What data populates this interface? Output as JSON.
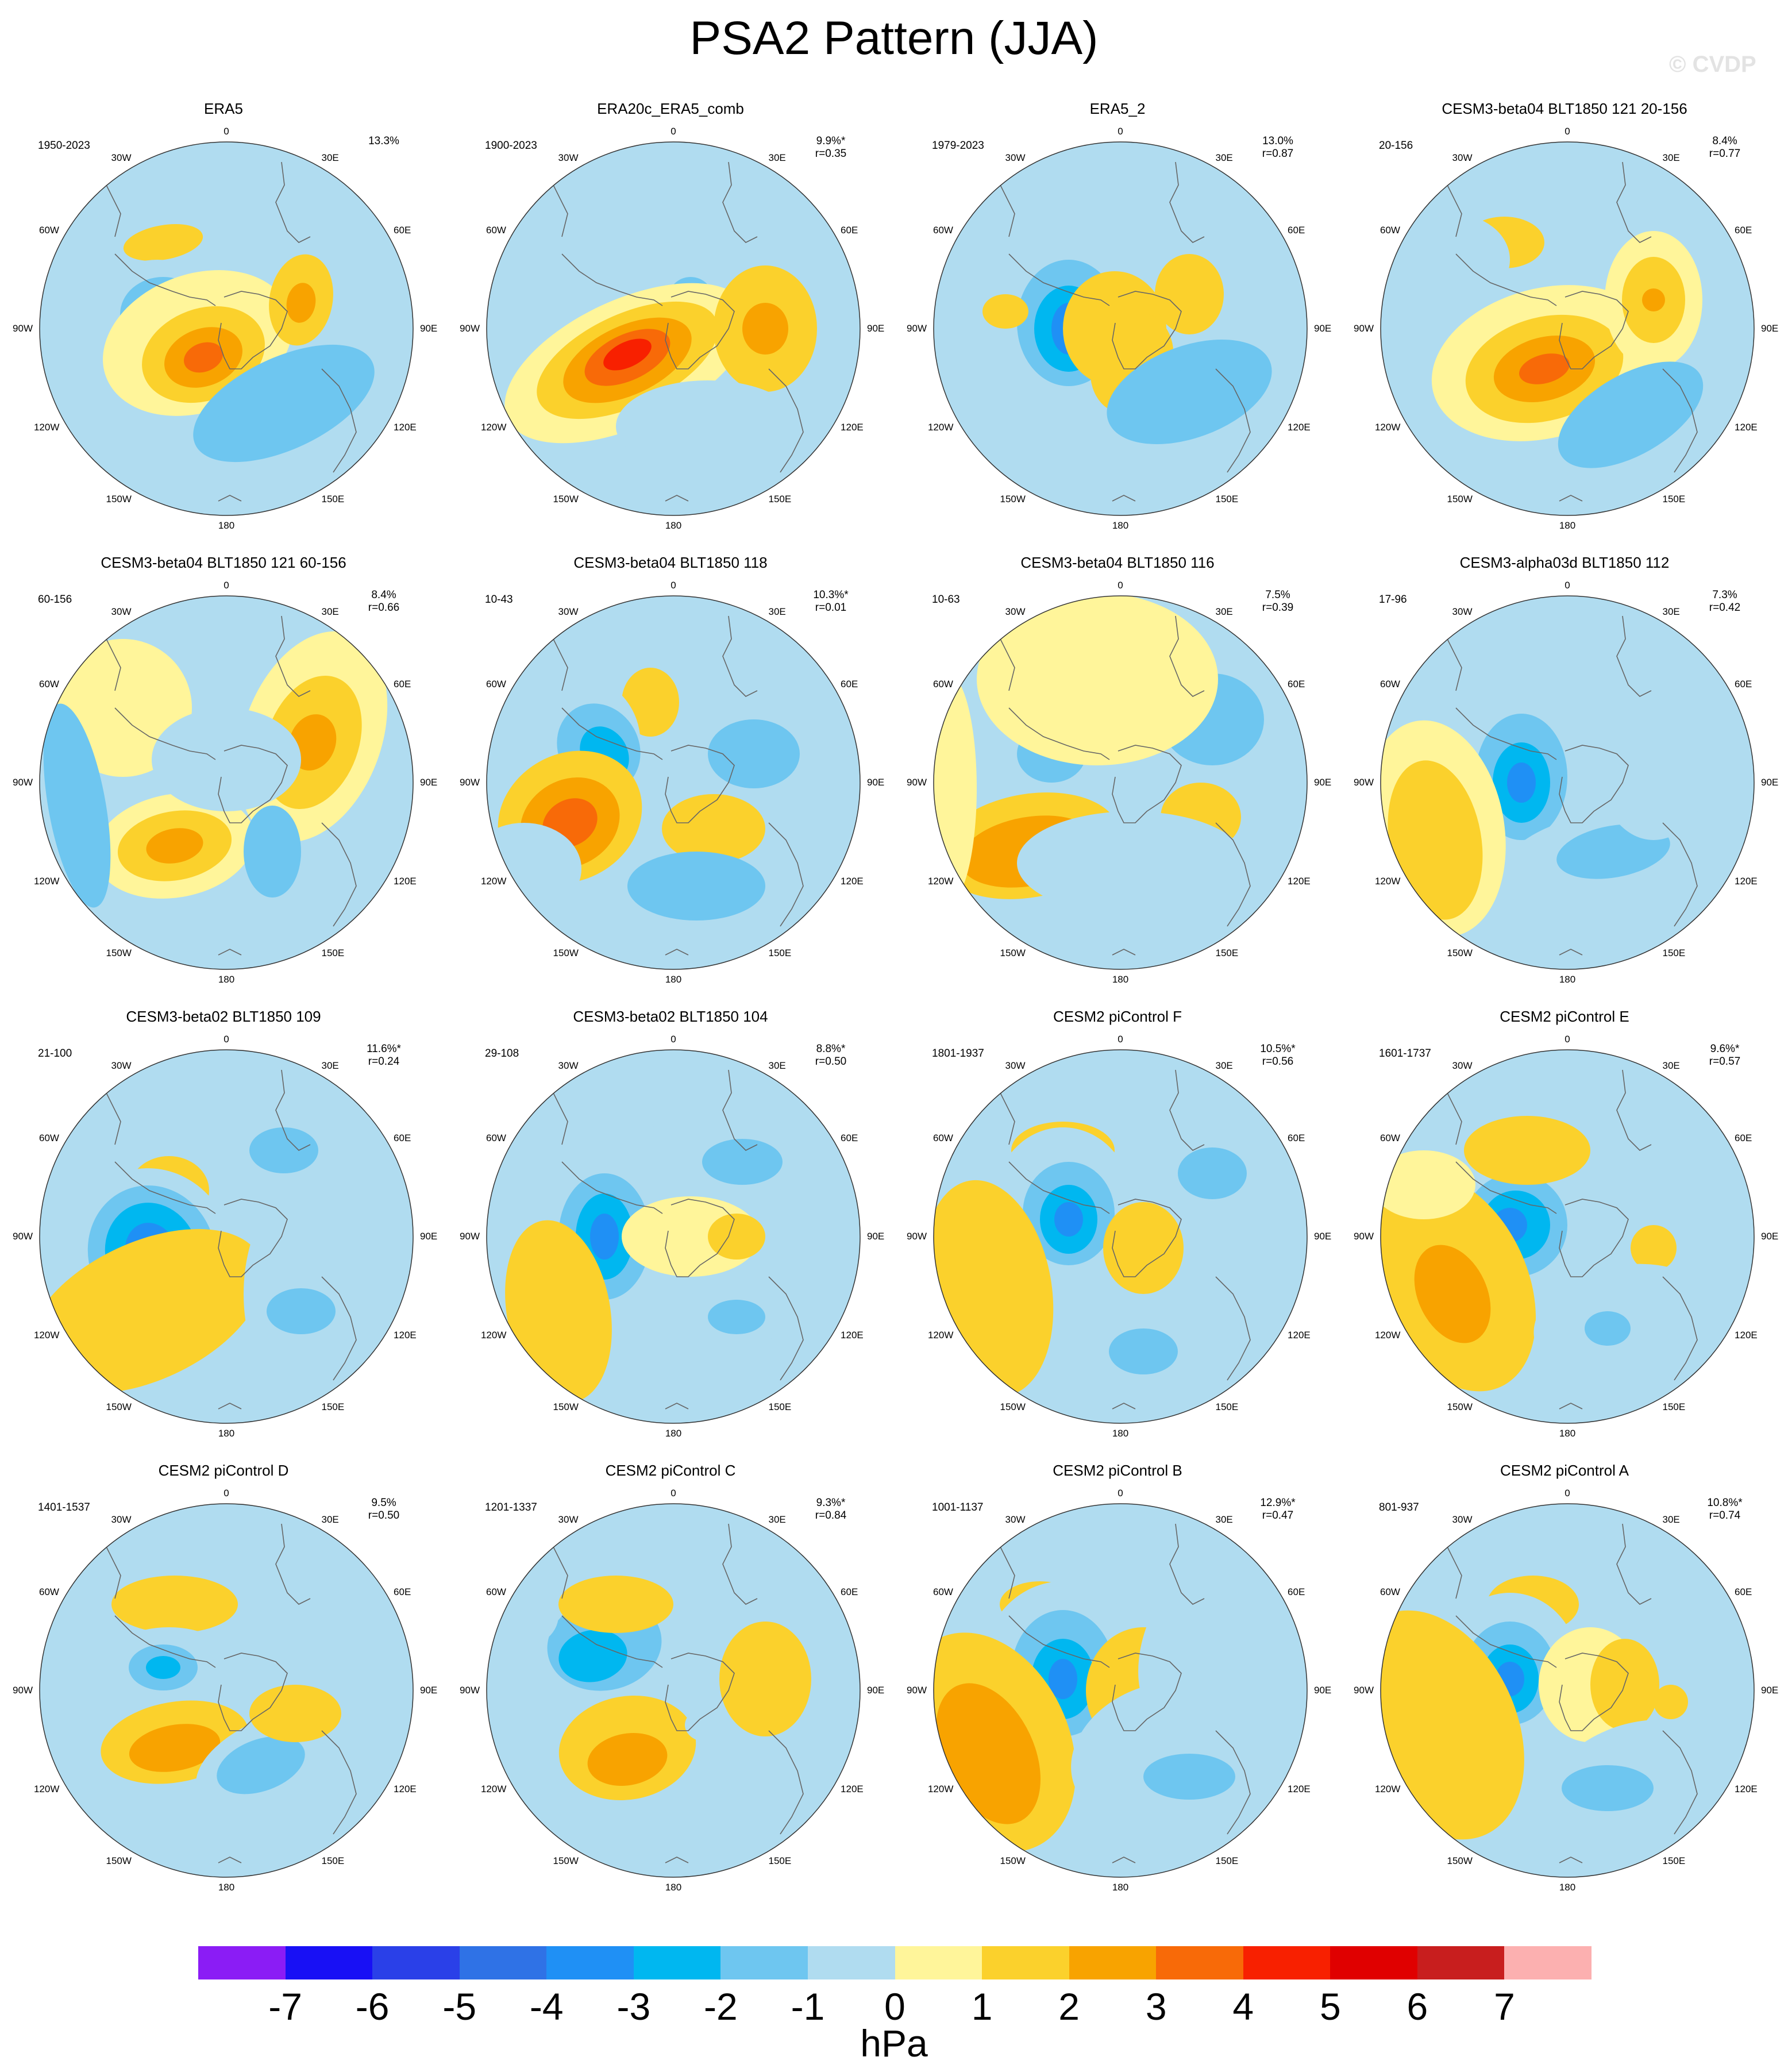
{
  "title": "PSA2 Pattern (JJA)",
  "watermark": "© CVDP",
  "colorbar": {
    "unit": "hPa",
    "ticks": [
      "-7",
      "-6",
      "-5",
      "-4",
      "-3",
      "-2",
      "-1",
      "0",
      "1",
      "2",
      "3",
      "4",
      "5",
      "6",
      "7"
    ],
    "colors": [
      "#8b1cf5",
      "#1810f5",
      "#2a40e8",
      "#2f72e6",
      "#1f90f5",
      "#00b7f0",
      "#6ec6f0",
      "#b0dcf0",
      "#fff59a",
      "#fbd12c",
      "#f8a300",
      "#f86a08",
      "#f82000",
      "#e00000",
      "#c81e1e",
      "#fcb0b0"
    ]
  },
  "longitude_labels": [
    "0",
    "30E",
    "60E",
    "90E",
    "120E",
    "150E",
    "180",
    "150W",
    "120W",
    "90W",
    "60W",
    "30W"
  ],
  "panels": [
    {
      "title": "ERA5",
      "years": "1950-2023",
      "pct": "13.3%",
      "r": ""
    },
    {
      "title": "ERA20c_ERA5_comb",
      "years": "1900-2023",
      "pct": "9.9%*",
      "r": "r=0.35"
    },
    {
      "title": "ERA5_2",
      "years": "1979-2023",
      "pct": "13.0%",
      "r": "r=0.87"
    },
    {
      "title": "CESM3-beta04 BLT1850 121 20-156",
      "years": "20-156",
      "pct": "8.4%",
      "r": "r=0.77"
    },
    {
      "title": "CESM3-beta04 BLT1850 121 60-156",
      "years": "60-156",
      "pct": "8.4%",
      "r": "r=0.66"
    },
    {
      "title": "CESM3-beta04 BLT1850 118",
      "years": "10-43",
      "pct": "10.3%*",
      "r": "r=0.01"
    },
    {
      "title": "CESM3-beta04 BLT1850 116",
      "years": "10-63",
      "pct": "7.5%",
      "r": "r=0.39"
    },
    {
      "title": "CESM3-alpha03d BLT1850 112",
      "years": "17-96",
      "pct": "7.3%",
      "r": "r=0.42"
    },
    {
      "title": "CESM3-beta02 BLT1850 109",
      "years": "21-100",
      "pct": "11.6%*",
      "r": "r=0.24"
    },
    {
      "title": "CESM3-beta02 BLT1850 104",
      "years": "29-108",
      "pct": "8.8%*",
      "r": "r=0.50"
    },
    {
      "title": "CESM2 piControl F",
      "years": "1801-1937",
      "pct": "10.5%*",
      "r": "r=0.56"
    },
    {
      "title": "CESM2 piControl E",
      "years": "1601-1737",
      "pct": "9.6%*",
      "r": "r=0.57"
    },
    {
      "title": "CESM2 piControl D",
      "years": "1401-1537",
      "pct": "9.5%",
      "r": "r=0.50"
    },
    {
      "title": "CESM2 piControl C",
      "years": "1201-1337",
      "pct": "9.3%*",
      "r": "r=0.84"
    },
    {
      "title": "CESM2 piControl B",
      "years": "1001-1137",
      "pct": "12.9%*",
      "r": "r=0.47"
    },
    {
      "title": "CESM2 piControl A",
      "years": "801-937",
      "pct": "10.8%*",
      "r": "r=0.74"
    }
  ]
}
